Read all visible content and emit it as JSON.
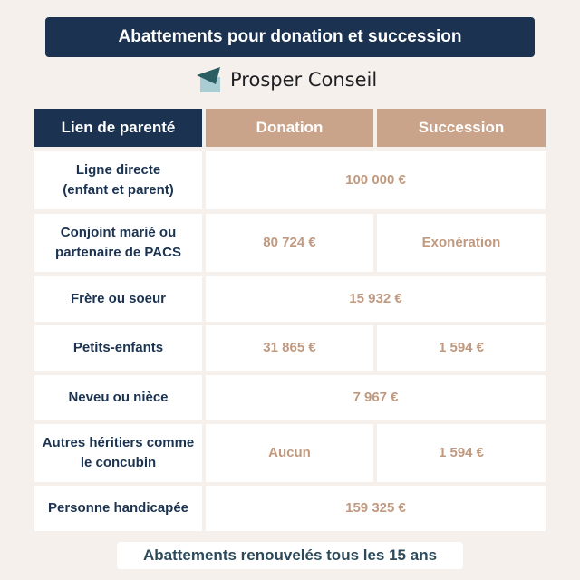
{
  "title": "Abattements pour donation et succession",
  "brand": {
    "name": "Prosper Conseil",
    "logo_icon": "envelope-logo-icon"
  },
  "headers": [
    "Lien de parenté",
    "Donation",
    "Succession"
  ],
  "rows": [
    {
      "label": "Ligne directe\n(enfant et parent)",
      "merged": "100 000 €"
    },
    {
      "label": "Conjoint marié ou partenaire de PACS",
      "donation": "80 724 €",
      "succession": "Exonération"
    },
    {
      "label": "Frère ou soeur",
      "merged": "15 932 €"
    },
    {
      "label": "Petits-enfants",
      "donation": "31 865 €",
      "succession": "1 594 €"
    },
    {
      "label": "Neveu ou nièce",
      "merged": "7 967 €"
    },
    {
      "label": "Autres héritiers comme le concubin",
      "donation": "Aucun",
      "succession": "1 594 €"
    },
    {
      "label": "Personne handicapée",
      "merged": "159 325 €"
    }
  ],
  "footer": "Abattements renouvelés tous les 15 ans",
  "colors": {
    "navy": "#1b3350",
    "tan": "#c9a48a",
    "value_text": "#c09a80",
    "background": "#f5f0eb"
  }
}
